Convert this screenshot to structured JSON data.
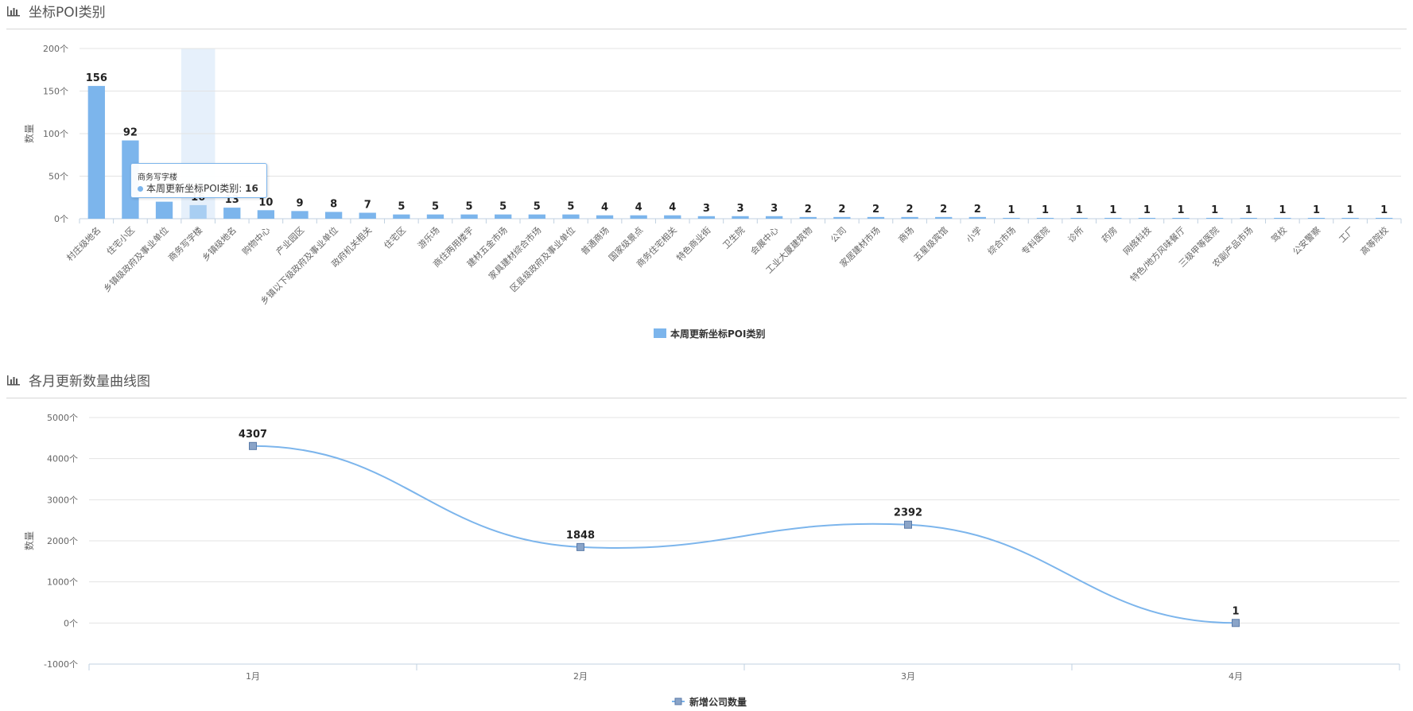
{
  "panels": [
    {
      "title": "坐标POI类别",
      "icon": "bar-chart-icon"
    },
    {
      "title": "各月更新数量曲线图",
      "icon": "bar-chart-icon"
    }
  ],
  "tooltip": {
    "category": "商务写字楼",
    "series": "本周更新坐标POI类别",
    "separator": ": ",
    "value": "16"
  },
  "chart_data": [
    {
      "type": "bar",
      "title": "坐标POI类别",
      "ylabel": "数量",
      "ylim": [
        0,
        200
      ],
      "yticks": [
        0,
        50,
        100,
        150,
        200
      ],
      "ytick_suffix": "个",
      "grid": true,
      "legend": "bottom-center",
      "highlighted_category": "商务写字楼",
      "colors": {
        "bar": "#7cb5ec",
        "highlight_bar": "#a8cef2",
        "highlight_band": "#e6f0fb"
      },
      "categories": [
        "村庄级地名",
        "住宅小区",
        "乡镇级政府及事业单位",
        "商务写字楼",
        "乡镇级地名",
        "购物中心",
        "产业园区",
        "乡镇以下级政府及事业单位",
        "政府机关相关",
        "住宅区",
        "游乐场",
        "商住两用楼宇",
        "建材五金市场",
        "家具建材综合市场",
        "区县级政府及事业单位",
        "普通商场",
        "国家级景点",
        "商务住宅相关",
        "特色商业街",
        "卫生院",
        "会展中心",
        "工业大厦建筑物",
        "公司",
        "家居建材市场",
        "商场",
        "五星级宾馆",
        "小学",
        "综合市场",
        "专科医院",
        "诊所",
        "药房",
        "网络科技",
        "特色/地方风味餐厅",
        "三级甲等医院",
        "农副产品市场",
        "驾校",
        "公安警察",
        "工厂",
        "高等院校"
      ],
      "series": [
        {
          "name": "本周更新坐标POI类别",
          "values": [
            156,
            92,
            20,
            16,
            13,
            10,
            9,
            8,
            7,
            5,
            5,
            5,
            5,
            5,
            5,
            4,
            4,
            4,
            3,
            3,
            3,
            2,
            2,
            2,
            2,
            2,
            2,
            1,
            1,
            1,
            1,
            1,
            1,
            1,
            1,
            1,
            1,
            1,
            1
          ]
        }
      ],
      "data_labels": [
        "156",
        "92",
        "",
        "16",
        "13",
        "10",
        "9",
        "8",
        "7",
        "5",
        "5",
        "5",
        "5",
        "5",
        "5",
        "4",
        "4",
        "4",
        "3",
        "3",
        "3",
        "2",
        "2",
        "2",
        "2",
        "2",
        "2",
        "1",
        "1",
        "1",
        "1",
        "1",
        "1",
        "1",
        "1",
        "1",
        "1",
        "1",
        "1"
      ]
    },
    {
      "type": "line",
      "title": "各月更新数量曲线图",
      "ylabel": "数量",
      "ylim": [
        -1000,
        5000
      ],
      "yticks": [
        -1000,
        0,
        1000,
        2000,
        3000,
        4000,
        5000
      ],
      "ytick_suffix": "个",
      "grid": true,
      "legend": "bottom-center",
      "colors": {
        "line": "#7cb5ec",
        "marker": "#8aa4c8",
        "marker_stroke": "#5a7aa8"
      },
      "categories": [
        "1月",
        "2月",
        "3月",
        "4月"
      ],
      "series": [
        {
          "name": "新增公司数量",
          "values": [
            4307,
            1848,
            2392,
            1
          ]
        }
      ],
      "data_labels": [
        "4307",
        "1848",
        "2392",
        "1"
      ]
    }
  ]
}
